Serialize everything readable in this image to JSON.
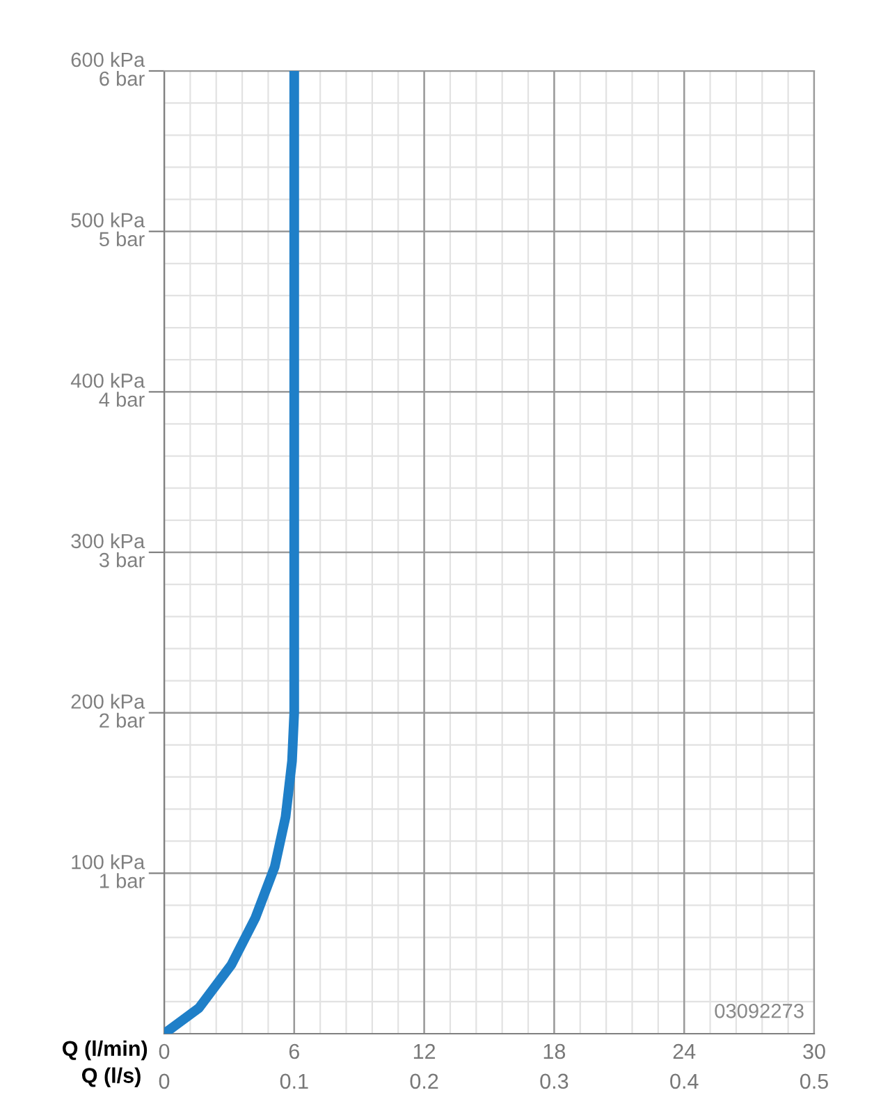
{
  "chart_data": {
    "type": "line",
    "xlabel": "Q (l/min)",
    "x2label": "Q (l/s)",
    "series": [
      {
        "color": "#1f7fc8",
        "x": [
          0,
          1.6,
          3.1,
          4.2,
          5.1,
          5.6,
          5.9,
          6,
          6
        ],
        "values": [
          0,
          16,
          43,
          72,
          104,
          135,
          170,
          200,
          600
        ]
      }
    ],
    "xlim": [
      0,
      30
    ],
    "xticks": [
      0,
      6,
      12,
      18,
      24,
      30
    ],
    "x2lim": [
      0,
      0.5
    ],
    "x2ticks": [
      0,
      0.1,
      0.2,
      0.3,
      0.4,
      0.5
    ],
    "ylim": [
      0,
      600
    ],
    "yticks": [
      {
        "value": 100,
        "label": "100 kPa"
      },
      {
        "value": 200,
        "label": "200 kPa"
      },
      {
        "value": 300,
        "label": "300 kPa"
      },
      {
        "value": 400,
        "label": "400 kPa"
      },
      {
        "value": 500,
        "label": "500 kPa"
      },
      {
        "value": 600,
        "label": "600 kPa"
      }
    ],
    "y2lim": [
      0,
      6
    ],
    "y2ticks": [
      {
        "value": 1,
        "label": "1 bar"
      },
      {
        "value": 2,
        "label": "2 bar"
      },
      {
        "value": 3,
        "label": "3 bar"
      },
      {
        "value": 4,
        "label": "4 bar"
      },
      {
        "value": 5,
        "label": "5 bar"
      },
      {
        "value": 6,
        "label": "6 bar"
      }
    ],
    "grid": true,
    "marker": "none",
    "line_style": "solid",
    "annotations": [
      "03092273"
    ]
  }
}
